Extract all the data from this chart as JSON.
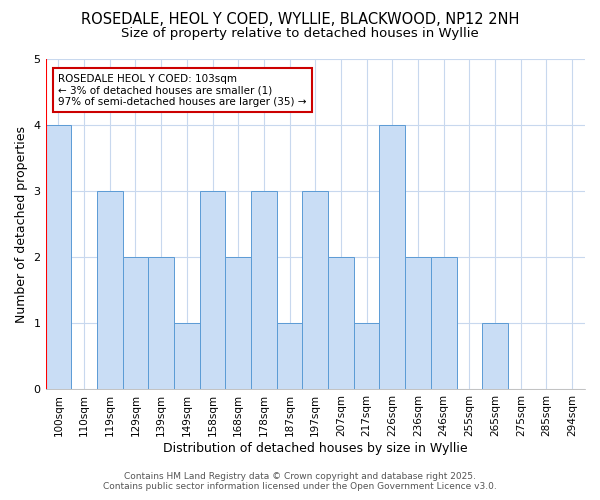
{
  "title_line1": "ROSEDALE, HEOL Y COED, WYLLIE, BLACKWOOD, NP12 2NH",
  "title_line2": "Size of property relative to detached houses in Wyllie",
  "xlabel": "Distribution of detached houses by size in Wyllie",
  "ylabel": "Number of detached properties",
  "bar_labels": [
    "100sqm",
    "110sqm",
    "119sqm",
    "129sqm",
    "139sqm",
    "149sqm",
    "158sqm",
    "168sqm",
    "178sqm",
    "187sqm",
    "197sqm",
    "207sqm",
    "217sqm",
    "226sqm",
    "236sqm",
    "246sqm",
    "255sqm",
    "265sqm",
    "275sqm",
    "285sqm",
    "294sqm"
  ],
  "bar_values": [
    4,
    0,
    3,
    2,
    2,
    1,
    3,
    2,
    3,
    1,
    3,
    2,
    1,
    4,
    2,
    2,
    0,
    1,
    0,
    0,
    0
  ],
  "bar_color": "#c9ddf5",
  "bar_edge_color": "#5b9bd5",
  "subject_line_color": "#ff0000",
  "annotation_title": "ROSEDALE HEOL Y COED: 103sqm",
  "annotation_line1": "← 3% of detached houses are smaller (1)",
  "annotation_line2": "97% of semi-detached houses are larger (35) →",
  "annotation_box_color": "#ffffff",
  "annotation_box_edge": "#cc0000",
  "ylim": [
    0,
    5
  ],
  "yticks": [
    0,
    1,
    2,
    3,
    4,
    5
  ],
  "footer_line1": "Contains HM Land Registry data © Crown copyright and database right 2025.",
  "footer_line2": "Contains public sector information licensed under the Open Government Licence v3.0.",
  "fig_background": "#ffffff",
  "plot_background": "#ffffff",
  "grid_color": "#c8d8ee",
  "title_fontsize": 10.5,
  "subtitle_fontsize": 9.5,
  "axis_label_fontsize": 9,
  "tick_fontsize": 7.5,
  "footer_fontsize": 6.5,
  "annotation_fontsize": 7.5
}
